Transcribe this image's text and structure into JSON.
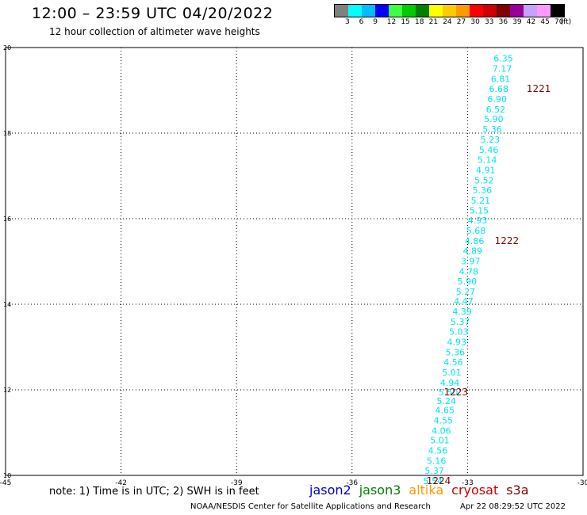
{
  "header": {
    "title": "12:00 – 23:59 UTC 04/20/2022",
    "subtitle": "12 hour collection of altimeter wave heights"
  },
  "legend": {
    "colors": [
      "#808080",
      "#00ffff",
      "#00bfff",
      "#0000ff",
      "#40ff40",
      "#00cc00",
      "#008000",
      "#ffff00",
      "#ffcc00",
      "#ff9900",
      "#ff0000",
      "#cc0000",
      "#800000",
      "#990099",
      "#c8a0ff",
      "#ff99ff",
      "#000000"
    ],
    "labels": [
      "3",
      "6",
      "9",
      "12",
      "15",
      "18",
      "21",
      "24",
      "27",
      "30",
      "33",
      "36",
      "39",
      "42",
      "45",
      "70",
      "(ft)"
    ]
  },
  "footer": {
    "note": "note:  1) Time is in UTC;  2) SWH is in feet",
    "missions": [
      {
        "name": "jason2",
        "color": "#0000cc"
      },
      {
        "name": "jason3",
        "color": "#008000"
      },
      {
        "name": "altika",
        "color": "#ff9900"
      },
      {
        "name": "cryosat",
        "color": "#cc0000"
      },
      {
        "name": "s3a",
        "color": "#800000"
      }
    ],
    "credit": "NOAA/NESDIS Center for Satellite Applications and Research",
    "timestamp": "Apr 22 08:29:52 UTC 2022"
  },
  "chart_data": {
    "type": "scatter",
    "xlim": [
      -45,
      -30
    ],
    "ylim": [
      10,
      20
    ],
    "xticks": [
      "-45",
      "-42",
      "-39",
      "-36",
      "-33",
      "-30"
    ],
    "yticks": [
      "10",
      "12",
      "14",
      "16",
      "18",
      "20"
    ],
    "grid": true,
    "text_color": "#00e5ee",
    "time_color": "#800000",
    "points": [
      {
        "x": -32.07,
        "y": 19.75,
        "swh": "6.35"
      },
      {
        "x": -32.1,
        "y": 19.51,
        "swh": "7.17"
      },
      {
        "x": -32.14,
        "y": 19.27,
        "swh": "6.81"
      },
      {
        "x": -32.19,
        "y": 19.04,
        "swh": "6.68"
      },
      {
        "x": -32.23,
        "y": 18.8,
        "swh": "6.90"
      },
      {
        "x": -32.27,
        "y": 18.56,
        "swh": "6.52"
      },
      {
        "x": -32.32,
        "y": 18.33,
        "swh": "5.90"
      },
      {
        "x": -32.36,
        "y": 18.09,
        "swh": "5.36"
      },
      {
        "x": -32.41,
        "y": 17.85,
        "swh": "5.23"
      },
      {
        "x": -32.45,
        "y": 17.61,
        "swh": "5.46"
      },
      {
        "x": -32.49,
        "y": 17.38,
        "swh": "5.14"
      },
      {
        "x": -32.53,
        "y": 17.14,
        "swh": "4.91"
      },
      {
        "x": -32.57,
        "y": 16.9,
        "swh": "5.52"
      },
      {
        "x": -32.62,
        "y": 16.67,
        "swh": "5.36"
      },
      {
        "x": -32.66,
        "y": 16.43,
        "swh": "5.21"
      },
      {
        "x": -32.7,
        "y": 16.19,
        "swh": "5.15"
      },
      {
        "x": -32.74,
        "y": 15.96,
        "swh": "4.93"
      },
      {
        "x": -32.78,
        "y": 15.72,
        "swh": "5.68"
      },
      {
        "x": -32.82,
        "y": 15.48,
        "swh": "4.86"
      },
      {
        "x": -32.87,
        "y": 15.25,
        "swh": "4.89"
      },
      {
        "x": -32.92,
        "y": 15.01,
        "swh": "3.97"
      },
      {
        "x": -32.97,
        "y": 14.77,
        "swh": "4.78"
      },
      {
        "x": -33.01,
        "y": 14.54,
        "swh": "5.90"
      },
      {
        "x": -33.05,
        "y": 14.3,
        "swh": "5.27"
      },
      {
        "x": -33.1,
        "y": 14.07,
        "swh": "4.47"
      },
      {
        "x": -33.14,
        "y": 13.83,
        "swh": "4.39"
      },
      {
        "x": -33.19,
        "y": 13.59,
        "swh": "5.37"
      },
      {
        "x": -33.23,
        "y": 13.36,
        "swh": "5.03"
      },
      {
        "x": -33.28,
        "y": 13.12,
        "swh": "4.93"
      },
      {
        "x": -33.32,
        "y": 12.88,
        "swh": "5.36"
      },
      {
        "x": -33.37,
        "y": 12.65,
        "swh": "4.56"
      },
      {
        "x": -33.41,
        "y": 12.41,
        "swh": "5.01"
      },
      {
        "x": -33.46,
        "y": 12.17,
        "swh": "4.94"
      },
      {
        "x": -33.5,
        "y": 11.94,
        "swh": "5.50"
      },
      {
        "x": -33.55,
        "y": 11.74,
        "swh": "5.24"
      },
      {
        "x": -33.59,
        "y": 11.53,
        "swh": "4.65"
      },
      {
        "x": -33.63,
        "y": 11.29,
        "swh": "4.55"
      },
      {
        "x": -33.68,
        "y": 11.05,
        "swh": "4.06"
      },
      {
        "x": -33.72,
        "y": 10.82,
        "swh": "5.01"
      },
      {
        "x": -33.77,
        "y": 10.58,
        "swh": "4.56"
      },
      {
        "x": -33.81,
        "y": 10.34,
        "swh": "5.16"
      },
      {
        "x": -33.86,
        "y": 10.11,
        "swh": "5.37"
      },
      {
        "x": -33.9,
        "y": 9.87,
        "swh": "5.54"
      }
    ],
    "time_labels": [
      {
        "x": -31.15,
        "y": 19.04,
        "text": "1221"
      },
      {
        "x": -31.98,
        "y": 15.48,
        "text": "1222"
      },
      {
        "x": -33.3,
        "y": 11.94,
        "text": "1223"
      },
      {
        "x": -33.75,
        "y": 9.87,
        "text": "1224"
      }
    ]
  }
}
